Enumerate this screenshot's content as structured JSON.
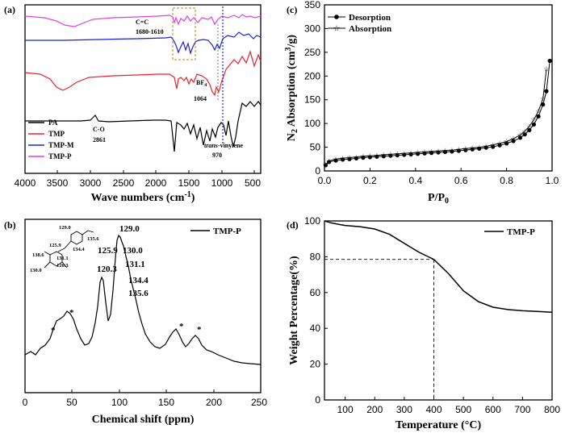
{
  "chart_data": [
    {
      "id": "a",
      "panel_label": "(a)",
      "type": "line",
      "xlabel": "Wave numbers (cm",
      "xlabel_sup": "-1",
      "xlabel_end": ")",
      "xticks": [
        "4000",
        "3500",
        "3000",
        "2500",
        "2000",
        "1500",
        "1000",
        "500"
      ],
      "xlim": [
        4000,
        400
      ],
      "series": [
        {
          "name": "PA",
          "color": "#000000"
        },
        {
          "name": "TMP",
          "color": "#e8232a"
        },
        {
          "name": "TMP-M",
          "color": "#1a22d6"
        },
        {
          "name": "TMP-P",
          "color": "#e040e0"
        }
      ],
      "annotations": {
        "cc": "C=C",
        "cc_range": "1680-1610",
        "bf4": "BF",
        "bf4_sub": "4",
        "bf4_val": "1064",
        "co": "C-O",
        "co_val": "2861",
        "trans": "trans",
        "vinylene": "-vinylene",
        "vinylene_val": "970"
      }
    },
    {
      "id": "b",
      "panel_label": "(b)",
      "type": "line",
      "xlabel": "Chemical shift  (ppm)",
      "xticks": [
        "0",
        "50",
        "100",
        "150",
        "200",
        "250"
      ],
      "xlim": [
        0,
        250
      ],
      "series": [
        {
          "name": "TMP-P",
          "color": "#000000"
        }
      ],
      "peaks": [
        "129.0",
        "130.0",
        "131.1",
        "134.4",
        "135.6",
        "125.9",
        "120.3",
        "*",
        "*",
        "*",
        "*"
      ],
      "molecule_labels": [
        "129.0",
        "135.6",
        "125.9",
        "134.4",
        "138.6",
        "131.1",
        "120.3",
        "130.0"
      ]
    },
    {
      "id": "c",
      "panel_label": "(c)",
      "type": "line",
      "xlabel": "P/P",
      "xlabel_sub": "0",
      "ylabel": "N",
      "ylabel_sub": "2",
      "ylabel_mid": " Absorption (cm",
      "ylabel_sup": "3",
      "ylabel_end": "/g)",
      "xticks": [
        "0.0",
        "0.2",
        "0.4",
        "0.6",
        "0.8",
        "1.0"
      ],
      "yticks": [
        "0",
        "50",
        "100",
        "150",
        "200",
        "250",
        "300",
        "350"
      ],
      "xlim": [
        0,
        1.0
      ],
      "ylim": [
        0,
        350
      ],
      "series": [
        {
          "name": "Desorption",
          "marker": "filled-circle",
          "x": [
            0.005,
            0.02,
            0.05,
            0.08,
            0.11,
            0.14,
            0.17,
            0.2,
            0.23,
            0.26,
            0.29,
            0.32,
            0.35,
            0.38,
            0.41,
            0.44,
            0.47,
            0.5,
            0.53,
            0.56,
            0.59,
            0.62,
            0.65,
            0.68,
            0.71,
            0.74,
            0.77,
            0.8,
            0.83,
            0.86,
            0.88,
            0.9,
            0.92,
            0.94,
            0.96,
            0.975,
            0.99
          ],
          "y": [
            12,
            19,
            22,
            24,
            25,
            26.5,
            28,
            29,
            30,
            31,
            32,
            33,
            34,
            35,
            36,
            37,
            38,
            39,
            40,
            41,
            42.5,
            44,
            45.5,
            47,
            49,
            51,
            54,
            58,
            63,
            70,
            77,
            86,
            98,
            115,
            140,
            168,
            232
          ]
        },
        {
          "name": "Absorption",
          "marker": "open-star",
          "x": [
            0.005,
            0.02,
            0.05,
            0.08,
            0.11,
            0.14,
            0.17,
            0.2,
            0.23,
            0.26,
            0.29,
            0.32,
            0.35,
            0.38,
            0.41,
            0.44,
            0.47,
            0.5,
            0.53,
            0.56,
            0.59,
            0.62,
            0.65,
            0.68,
            0.71,
            0.74,
            0.77,
            0.8,
            0.83,
            0.86,
            0.88,
            0.9,
            0.92,
            0.94,
            0.96,
            0.975
          ],
          "y": [
            13,
            21,
            25,
            27,
            28,
            29.5,
            31,
            32,
            33,
            34,
            35,
            36,
            37,
            38,
            39,
            40,
            41,
            42,
            43,
            44,
            45.5,
            47,
            48.5,
            50,
            52,
            55,
            58,
            62,
            68,
            76,
            84,
            94,
            108,
            126,
            152,
            215
          ]
        }
      ]
    },
    {
      "id": "d",
      "panel_label": "(d)",
      "type": "line",
      "xlabel": "Temperature  (°C)",
      "ylabel": "Weight Percentage(%)",
      "xticks": [
        "100",
        "200",
        "300",
        "400",
        "500",
        "600",
        "700",
        "800"
      ],
      "yticks": [
        "0",
        "20",
        "40",
        "60",
        "80",
        "100"
      ],
      "xlim": [
        30,
        800
      ],
      "ylim": [
        0,
        100
      ],
      "series": [
        {
          "name": "TMP-P",
          "x": [
            30,
            50,
            80,
            100,
            150,
            200,
            250,
            300,
            350,
            400,
            450,
            500,
            550,
            600,
            650,
            700,
            750,
            800
          ],
          "y": [
            100,
            99,
            98,
            97.5,
            96.8,
            95.5,
            92.5,
            87.5,
            82.5,
            78.5,
            70.5,
            61,
            55,
            51.8,
            50.5,
            49.8,
            49.4,
            49
          ]
        }
      ],
      "reference_point": {
        "x": 400,
        "y": 78.5
      }
    }
  ]
}
